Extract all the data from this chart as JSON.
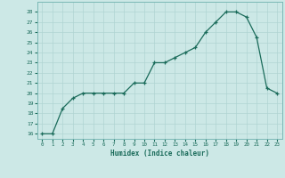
{
  "xlabel": "Humidex (Indice chaleur)",
  "x": [
    0,
    1,
    2,
    3,
    4,
    5,
    6,
    7,
    8,
    9,
    10,
    11,
    12,
    13,
    14,
    15,
    16,
    17,
    18,
    19,
    20,
    21,
    22,
    23
  ],
  "y": [
    16,
    16,
    18.5,
    19.5,
    20,
    20,
    20,
    20,
    20,
    21,
    21,
    23,
    23,
    23.5,
    24,
    24.5,
    26,
    27,
    28,
    28,
    27.5,
    25.5,
    20.5,
    20
  ],
  "line_color": "#1a6b5a",
  "marker": "+",
  "marker_color": "#1a6b5a",
  "bg_color": "#cce8e6",
  "grid_color": "#b0d4d2",
  "tick_color": "#1a6b5a",
  "label_color": "#1a6b5a",
  "spine_color": "#7ab8b5",
  "ylim": [
    15.5,
    29
  ],
  "xlim": [
    -0.5,
    23.5
  ],
  "yticks": [
    16,
    17,
    18,
    19,
    20,
    21,
    22,
    23,
    24,
    25,
    26,
    27,
    28
  ],
  "xticks": [
    0,
    1,
    2,
    3,
    4,
    5,
    6,
    7,
    8,
    9,
    10,
    11,
    12,
    13,
    14,
    15,
    16,
    17,
    18,
    19,
    20,
    21,
    22,
    23
  ]
}
